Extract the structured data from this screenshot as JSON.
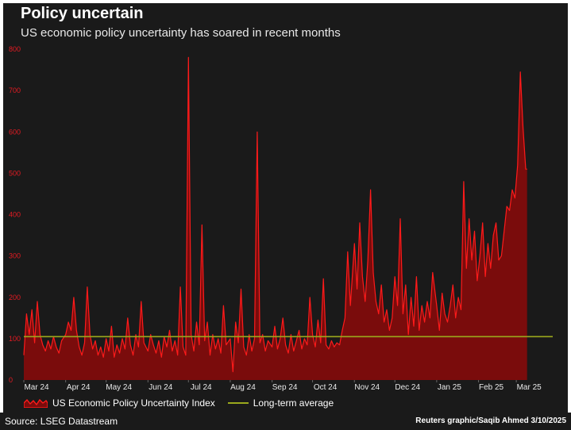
{
  "header": {
    "title": "Policy uncertain",
    "subtitle": "US economic policy uncertainty has soared in recent months"
  },
  "footer": {
    "source": "Source: LSEG Datastream",
    "credit": "Reuters graphic/Saqib Ahmed 3/10/2025"
  },
  "colors": {
    "background": "#1a1a1a",
    "series_line": "#ff1a1a",
    "series_fill": "#7a0c0c",
    "average_line": "#9aa81c",
    "y_tick_text": "#e31b23"
  },
  "chart_data": {
    "type": "area",
    "title": "Policy uncertain",
    "subtitle": "US economic policy uncertainty has soared in recent months",
    "xlabel": "",
    "ylabel": "",
    "ylim": [
      0,
      800
    ],
    "yticks": [
      0,
      100,
      200,
      300,
      400,
      500,
      600,
      700,
      800
    ],
    "xlim": [
      "2024-03-01",
      "2025-03-28"
    ],
    "x_tick_labels": [
      "Mar 24",
      "Apr 24",
      "May 24",
      "Jun 24",
      "Jul 24",
      "Aug 24",
      "Sep 24",
      "Oct 24",
      "Nov 24",
      "Dec 24",
      "Jan 25",
      "Feb 25",
      "Mar 25"
    ],
    "grid": false,
    "legend_position": "bottom-left",
    "series": [
      {
        "name": "US Economic Policy Uncertainty Index",
        "style": "filled area",
        "points": [
          [
            "2024-03-01",
            60
          ],
          [
            "2024-03-03",
            160
          ],
          [
            "2024-03-05",
            110
          ],
          [
            "2024-03-07",
            170
          ],
          [
            "2024-03-09",
            90
          ],
          [
            "2024-03-11",
            190
          ],
          [
            "2024-03-13",
            110
          ],
          [
            "2024-03-15",
            85
          ],
          [
            "2024-03-17",
            70
          ],
          [
            "2024-03-19",
            95
          ],
          [
            "2024-03-21",
            75
          ],
          [
            "2024-03-23",
            105
          ],
          [
            "2024-03-25",
            80
          ],
          [
            "2024-03-27",
            65
          ],
          [
            "2024-03-29",
            95
          ],
          [
            "2024-04-01",
            110
          ],
          [
            "2024-04-03",
            140
          ],
          [
            "2024-04-05",
            120
          ],
          [
            "2024-04-07",
            200
          ],
          [
            "2024-04-09",
            120
          ],
          [
            "2024-04-11",
            80
          ],
          [
            "2024-04-13",
            60
          ],
          [
            "2024-04-15",
            90
          ],
          [
            "2024-04-17",
            225
          ],
          [
            "2024-04-19",
            110
          ],
          [
            "2024-04-21",
            75
          ],
          [
            "2024-04-23",
            95
          ],
          [
            "2024-04-25",
            60
          ],
          [
            "2024-04-27",
            80
          ],
          [
            "2024-04-29",
            55
          ],
          [
            "2024-05-01",
            100
          ],
          [
            "2024-05-03",
            70
          ],
          [
            "2024-05-05",
            130
          ],
          [
            "2024-05-07",
            55
          ],
          [
            "2024-05-09",
            85
          ],
          [
            "2024-05-11",
            65
          ],
          [
            "2024-05-13",
            100
          ],
          [
            "2024-05-15",
            75
          ],
          [
            "2024-05-17",
            150
          ],
          [
            "2024-05-19",
            85
          ],
          [
            "2024-05-21",
            60
          ],
          [
            "2024-05-23",
            110
          ],
          [
            "2024-05-25",
            80
          ],
          [
            "2024-05-27",
            190
          ],
          [
            "2024-05-29",
            90
          ],
          [
            "2024-06-01",
            70
          ],
          [
            "2024-06-03",
            110
          ],
          [
            "2024-06-05",
            85
          ],
          [
            "2024-06-07",
            65
          ],
          [
            "2024-06-09",
            95
          ],
          [
            "2024-06-11",
            55
          ],
          [
            "2024-06-13",
            105
          ],
          [
            "2024-06-15",
            80
          ],
          [
            "2024-06-17",
            120
          ],
          [
            "2024-06-19",
            70
          ],
          [
            "2024-06-21",
            95
          ],
          [
            "2024-06-23",
            60
          ],
          [
            "2024-06-25",
            225
          ],
          [
            "2024-06-27",
            80
          ],
          [
            "2024-06-29",
            60
          ],
          [
            "2024-07-01",
            780
          ],
          [
            "2024-07-03",
            110
          ],
          [
            "2024-07-05",
            70
          ],
          [
            "2024-07-07",
            140
          ],
          [
            "2024-07-09",
            85
          ],
          [
            "2024-07-11",
            375
          ],
          [
            "2024-07-13",
            95
          ],
          [
            "2024-07-15",
            140
          ],
          [
            "2024-07-17",
            60
          ],
          [
            "2024-07-19",
            110
          ],
          [
            "2024-07-21",
            75
          ],
          [
            "2024-07-23",
            100
          ],
          [
            "2024-07-25",
            65
          ],
          [
            "2024-07-27",
            180
          ],
          [
            "2024-07-29",
            85
          ],
          [
            "2024-08-01",
            100
          ],
          [
            "2024-08-03",
            20
          ],
          [
            "2024-08-05",
            140
          ],
          [
            "2024-08-07",
            90
          ],
          [
            "2024-08-09",
            220
          ],
          [
            "2024-08-11",
            80
          ],
          [
            "2024-08-13",
            60
          ],
          [
            "2024-08-15",
            110
          ],
          [
            "2024-08-17",
            70
          ],
          [
            "2024-08-19",
            100
          ],
          [
            "2024-08-21",
            600
          ],
          [
            "2024-08-23",
            90
          ],
          [
            "2024-08-25",
            110
          ],
          [
            "2024-08-27",
            70
          ],
          [
            "2024-08-29",
            95
          ],
          [
            "2024-09-01",
            80
          ],
          [
            "2024-09-03",
            130
          ],
          [
            "2024-09-05",
            75
          ],
          [
            "2024-09-07",
            100
          ],
          [
            "2024-09-09",
            150
          ],
          [
            "2024-09-11",
            85
          ],
          [
            "2024-09-13",
            65
          ],
          [
            "2024-09-15",
            110
          ],
          [
            "2024-09-17",
            70
          ],
          [
            "2024-09-19",
            95
          ],
          [
            "2024-09-21",
            120
          ],
          [
            "2024-09-23",
            75
          ],
          [
            "2024-09-25",
            100
          ],
          [
            "2024-09-27",
            85
          ],
          [
            "2024-09-29",
            200
          ],
          [
            "2024-10-01",
            110
          ],
          [
            "2024-10-03",
            80
          ],
          [
            "2024-10-05",
            145
          ],
          [
            "2024-10-07",
            90
          ],
          [
            "2024-10-09",
            245
          ],
          [
            "2024-10-11",
            85
          ],
          [
            "2024-10-13",
            75
          ],
          [
            "2024-10-15",
            95
          ],
          [
            "2024-10-17",
            80
          ],
          [
            "2024-10-19",
            90
          ],
          [
            "2024-10-21",
            85
          ],
          [
            "2024-10-23",
            120
          ],
          [
            "2024-10-25",
            150
          ],
          [
            "2024-10-27",
            310
          ],
          [
            "2024-10-29",
            180
          ],
          [
            "2024-11-01",
            330
          ],
          [
            "2024-11-03",
            220
          ],
          [
            "2024-11-05",
            380
          ],
          [
            "2024-11-07",
            250
          ],
          [
            "2024-11-09",
            190
          ],
          [
            "2024-11-11",
            290
          ],
          [
            "2024-11-13",
            460
          ],
          [
            "2024-11-15",
            260
          ],
          [
            "2024-11-17",
            190
          ],
          [
            "2024-11-19",
            160
          ],
          [
            "2024-11-21",
            230
          ],
          [
            "2024-11-23",
            140
          ],
          [
            "2024-11-25",
            170
          ],
          [
            "2024-11-27",
            120
          ],
          [
            "2024-11-29",
            150
          ],
          [
            "2024-12-01",
            250
          ],
          [
            "2024-12-03",
            180
          ],
          [
            "2024-12-05",
            390
          ],
          [
            "2024-12-07",
            160
          ],
          [
            "2024-12-09",
            230
          ],
          [
            "2024-12-11",
            110
          ],
          [
            "2024-12-13",
            200
          ],
          [
            "2024-12-15",
            130
          ],
          [
            "2024-12-17",
            250
          ],
          [
            "2024-12-19",
            120
          ],
          [
            "2024-12-21",
            180
          ],
          [
            "2024-12-23",
            140
          ],
          [
            "2024-12-25",
            190
          ],
          [
            "2024-12-27",
            150
          ],
          [
            "2024-12-29",
            260
          ],
          [
            "2025-01-01",
            180
          ],
          [
            "2025-01-03",
            120
          ],
          [
            "2025-01-05",
            210
          ],
          [
            "2025-01-07",
            160
          ],
          [
            "2025-01-09",
            140
          ],
          [
            "2025-01-11",
            180
          ],
          [
            "2025-01-13",
            230
          ],
          [
            "2025-01-15",
            150
          ],
          [
            "2025-01-17",
            200
          ],
          [
            "2025-01-19",
            170
          ],
          [
            "2025-01-21",
            480
          ],
          [
            "2025-01-23",
            270
          ],
          [
            "2025-01-25",
            390
          ],
          [
            "2025-01-27",
            290
          ],
          [
            "2025-01-29",
            360
          ],
          [
            "2025-01-31",
            240
          ],
          [
            "2025-02-02",
            300
          ],
          [
            "2025-02-04",
            380
          ],
          [
            "2025-02-06",
            250
          ],
          [
            "2025-02-08",
            330
          ],
          [
            "2025-02-10",
            270
          ],
          [
            "2025-02-12",
            350
          ],
          [
            "2025-02-14",
            380
          ],
          [
            "2025-02-16",
            290
          ],
          [
            "2025-02-18",
            300
          ],
          [
            "2025-02-20",
            360
          ],
          [
            "2025-02-22",
            420
          ],
          [
            "2025-02-24",
            410
          ],
          [
            "2025-02-26",
            460
          ],
          [
            "2025-02-28",
            440
          ],
          [
            "2025-03-02",
            520
          ],
          [
            "2025-03-04",
            745
          ],
          [
            "2025-03-06",
            610
          ],
          [
            "2025-03-08",
            510
          ],
          [
            "2025-03-09",
            510
          ]
        ]
      },
      {
        "name": "Long-term average",
        "style": "line",
        "points": [
          [
            "2024-03-01",
            105
          ],
          [
            "2025-03-28",
            105
          ]
        ]
      }
    ]
  }
}
